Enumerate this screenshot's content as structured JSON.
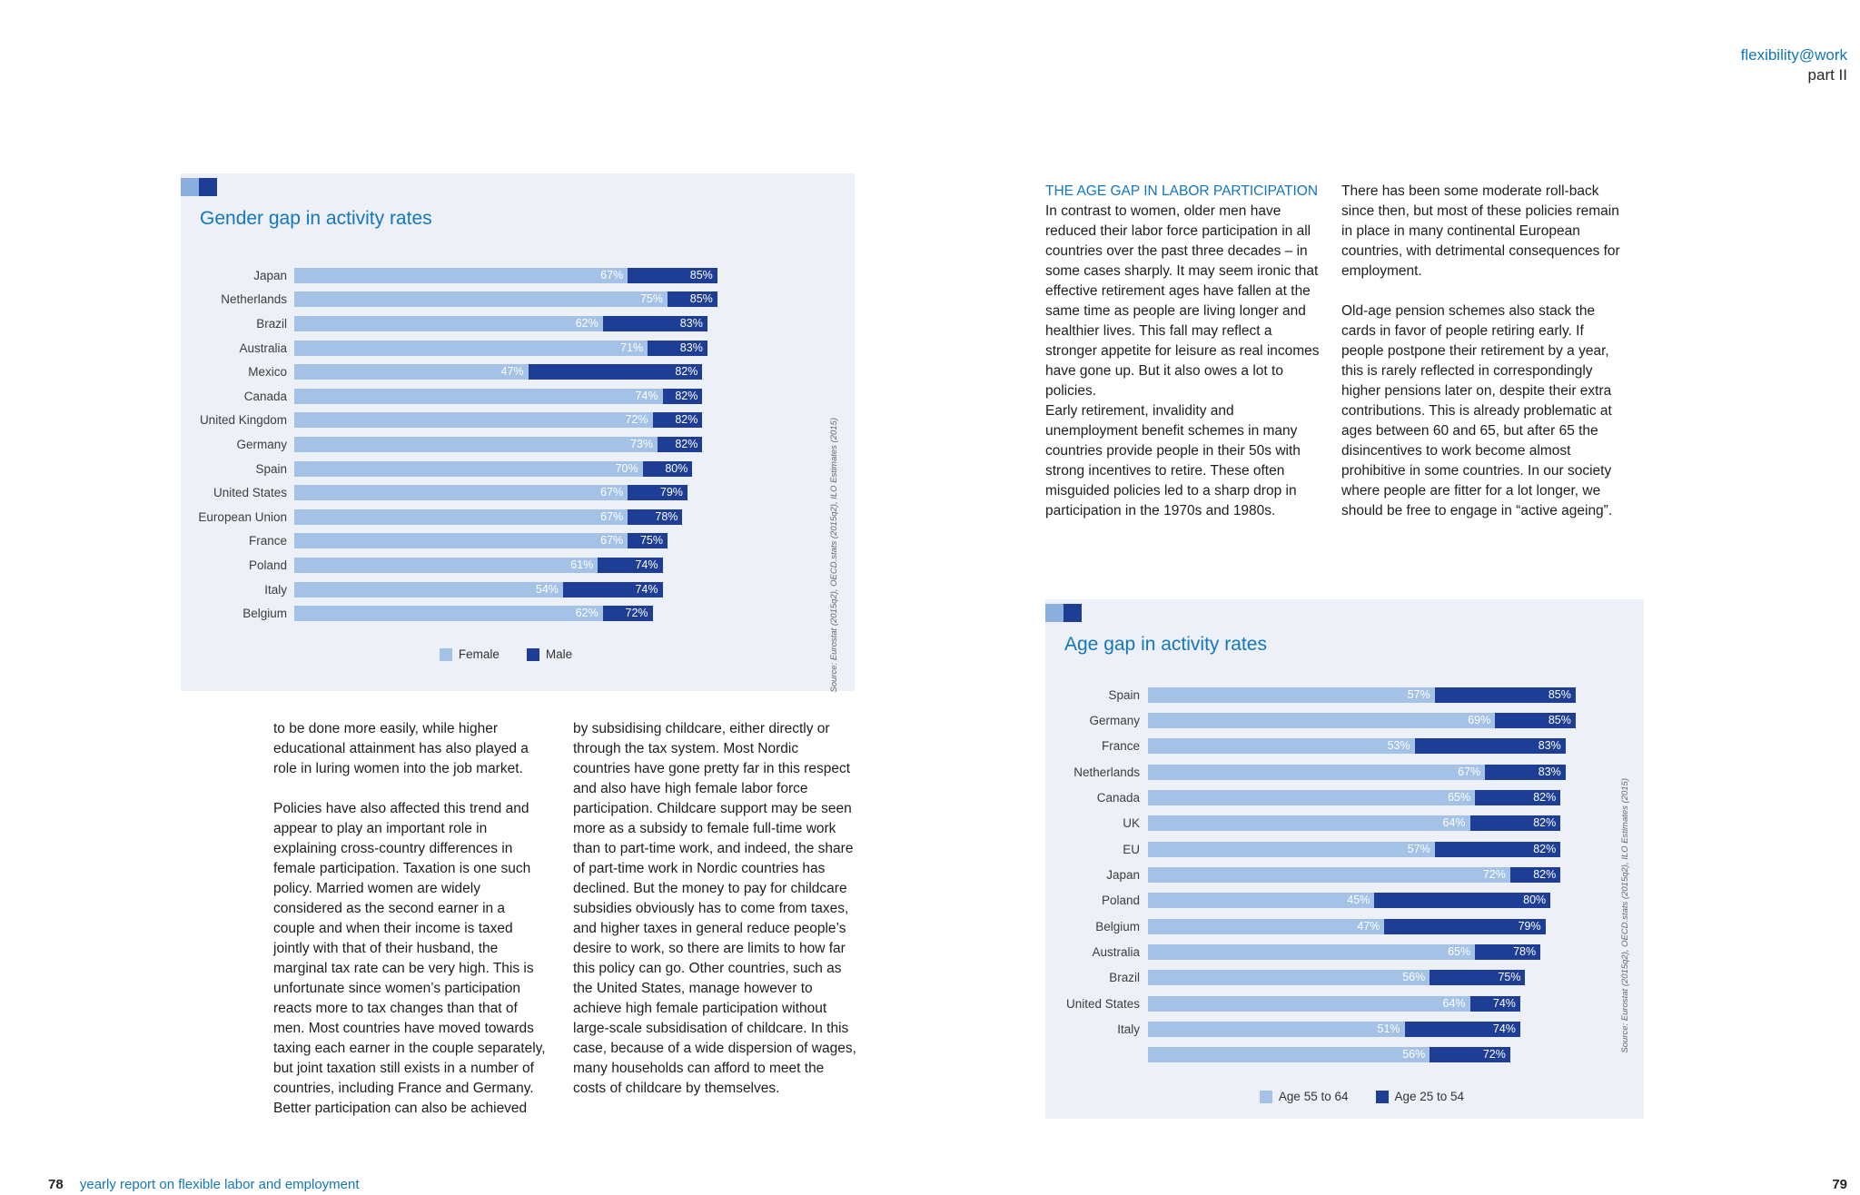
{
  "header": {
    "brand": "flexibility@work",
    "part": "part II"
  },
  "footer": {
    "page_left": "78",
    "report_title": "yearly report on flexible labor and employment",
    "page_right": "79"
  },
  "colors": {
    "accent_blue": "#1277bd",
    "card_background": "#edf0f7",
    "bar_light": "#a4c2e6",
    "bar_dark": "#1e3e95"
  },
  "left_page": {
    "col1": [
      "to be done more easily, while higher educational attainment has also played a role in luring women into the job market.",
      "Policies have also affected this trend and appear to play an important role in explaining cross-country differences in female participation. Taxation is one such policy. Married women are widely considered as the second earner in a couple and when their income is taxed jointly with that of their husband, the marginal tax rate can be very high. This is unfortunate since women’s participation reacts more to tax changes than that of men. Most countries have moved towards taxing each earner in the couple separately, but joint taxation still exists in a number of countries, including France and Germany. Better participation can also be achieved"
    ],
    "col2": [
      "by subsidising childcare, either directly or through the tax system. Most Nordic countries have gone pretty far in this respect and also have high female labor force participation. Childcare support may be seen more as a subsidy to female full-time work than to part-time work, and indeed, the share of part-time work in Nordic countries has declined. But the money to pay for childcare subsidies obviously has to come from taxes, and higher taxes in general reduce people’s desire to work, so there are limits to how far this policy can go. Other countries, such as the United States, manage however to achieve high female participation without large-scale subsidisation of childcare. In this case, because of a wide dispersion of wages, many households can afford to meet the costs of childcare by themselves."
    ]
  },
  "right_page": {
    "heading": "THE AGE GAP IN LABOR PARTICIPATION",
    "col1": [
      "In contrast to women, older men have reduced their labor force participation in all countries over the past three decades – in some cases sharply. It may seem ironic that effective retirement ages have fallen at the same time as people are living longer and healthier lives. This fall may reflect a stronger appetite for leisure as real incomes have gone up. But it also owes a lot to policies.",
      "Early retirement, invalidity and unemployment benefit schemes in many countries provide people in their 50s with strong incentives to retire. These often misguided policies led to a sharp drop in participation in the 1970s and 1980s."
    ],
    "col2": [
      "There has been some moderate roll-back since then, but most of these policies remain in place in many continental European countries, with detrimental consequences for employment.",
      "Old-age pension schemes also stack the cards in favor of people retiring early. If people postpone their retirement by a year, this is rarely reflected in correspondingly higher pensions later on, despite their extra contributions. This is already problematic at ages between 60 and 65, but after 65 the disincentives to work become almost prohibitive in some countries. In our society where people are fitter for a lot longer, we should be free to engage in “active ageing”."
    ]
  },
  "chart_data": [
    {
      "type": "bar",
      "orientation": "horizontal",
      "title": "Gender gap in activity rates",
      "unit": "%",
      "xlim": [
        0,
        100
      ],
      "grid": false,
      "legend_position": "bottom",
      "source": "Source: Eurostat (2015q2), OECD.stats (2015q2), ILO Estimates (2015)",
      "categories": [
        "Japan",
        "Netherlands",
        "Brazil",
        "Australia",
        "Mexico",
        "Canada",
        "United Kingdom",
        "Germany",
        "Spain",
        "United States",
        "European Union",
        "France",
        "Poland",
        "Italy",
        "Belgium"
      ],
      "series": [
        {
          "name": "Female",
          "color": "#a4c2e6",
          "values": [
            67,
            75,
            62,
            71,
            47,
            74,
            72,
            73,
            70,
            67,
            67,
            67,
            61,
            54,
            62
          ]
        },
        {
          "name": "Male",
          "color": "#1e3e95",
          "values": [
            85,
            85,
            83,
            83,
            82,
            82,
            82,
            82,
            80,
            79,
            78,
            75,
            74,
            74,
            72
          ]
        }
      ]
    },
    {
      "type": "bar",
      "orientation": "horizontal",
      "title": "Age gap in activity rates",
      "unit": "%",
      "xlim": [
        0,
        100
      ],
      "grid": false,
      "legend_position": "bottom",
      "source": "Source: Eurostat (2015q2), OECD.stats (2015q2), ILO Estimates (2015)",
      "categories": [
        "Spain",
        "Germany",
        "France",
        "Netherlands",
        "Canada",
        "UK",
        "EU",
        "Japan",
        "Poland",
        "Belgium",
        "Australia",
        "Brazil",
        "United States",
        "Italy",
        ""
      ],
      "series": [
        {
          "name": "Age 55 to 64",
          "color": "#a4c2e6",
          "values": [
            57,
            69,
            53,
            67,
            65,
            64,
            57,
            72,
            45,
            47,
            65,
            56,
            64,
            51,
            56
          ]
        },
        {
          "name": "Age 25 to 54",
          "color": "#1e3e95",
          "values": [
            85,
            85,
            83,
            83,
            82,
            82,
            82,
            82,
            80,
            79,
            78,
            75,
            74,
            74,
            72
          ]
        }
      ]
    }
  ]
}
